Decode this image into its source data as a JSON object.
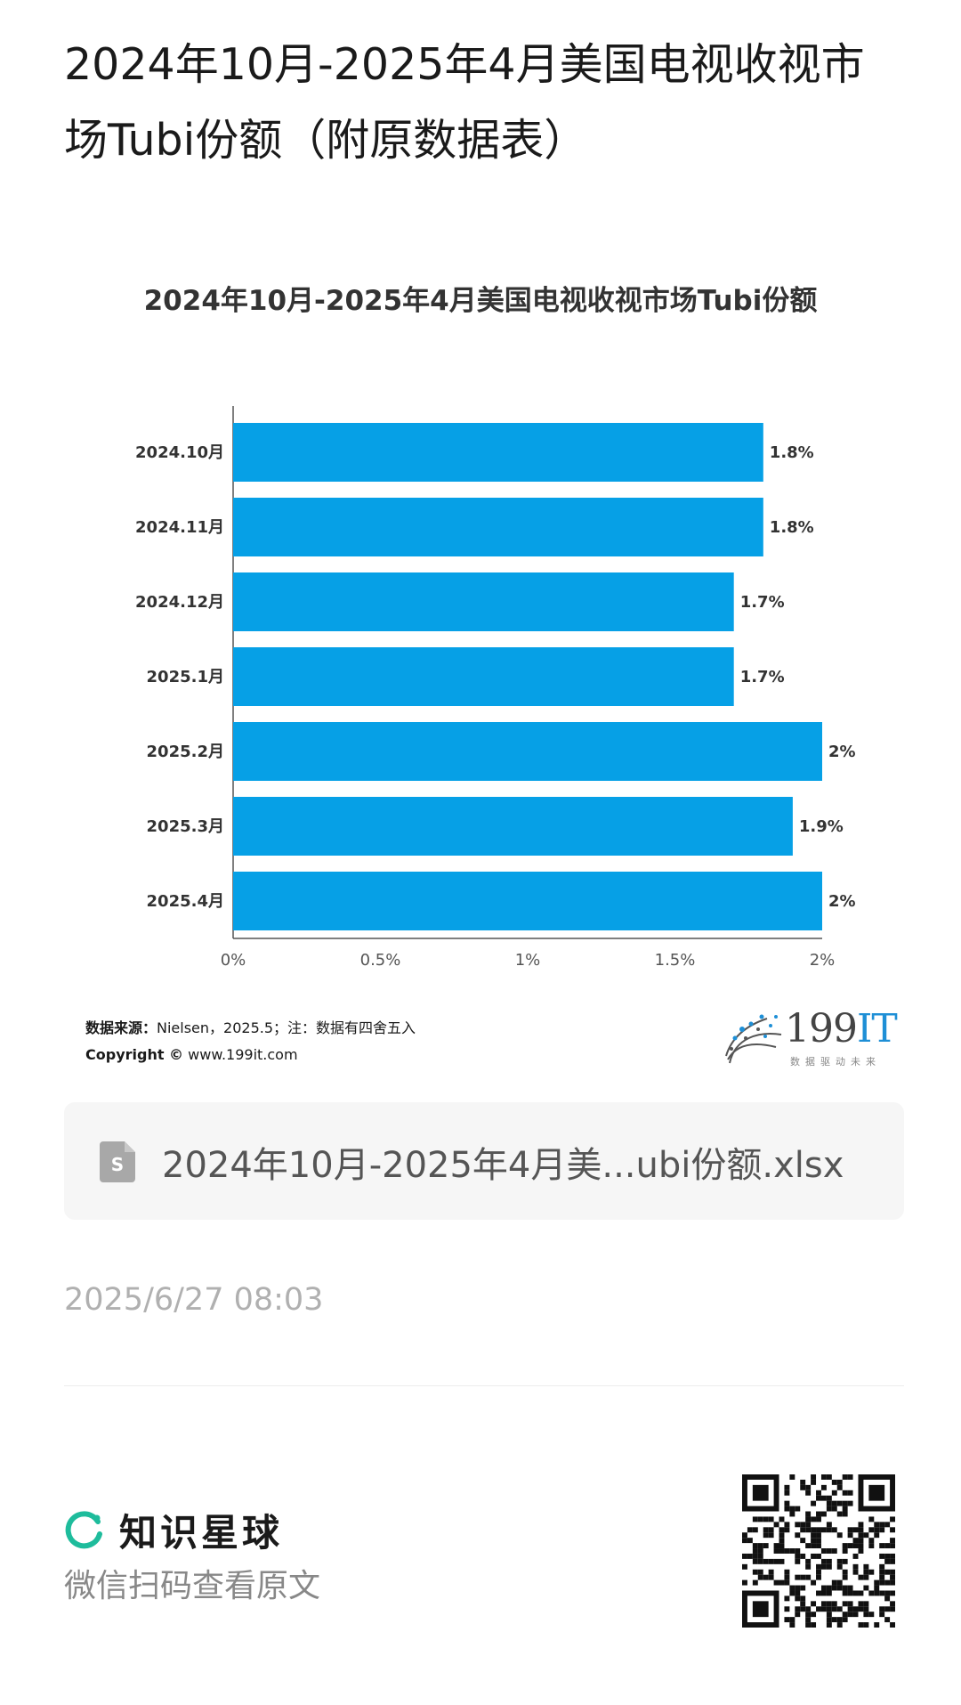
{
  "page_title": "2024年10月-2025年4月美国电视收视市场Tubi份额（附原数据表）",
  "chart_data": {
    "type": "bar",
    "orientation": "horizontal",
    "title": "2024年10月-2025年4月美国电视收视市场Tubi份额",
    "categories": [
      "2024.10月",
      "2024.11月",
      "2024.12月",
      "2025.1月",
      "2025.2月",
      "2025.3月",
      "2025.4月"
    ],
    "values": [
      1.8,
      1.8,
      1.7,
      1.7,
      2,
      1.9,
      2
    ],
    "value_labels": [
      "1.8%",
      "1.8%",
      "1.7%",
      "1.7%",
      "2%",
      "1.9%",
      "2%"
    ],
    "x_ticks": [
      "0%",
      "0.5%",
      "1%",
      "1.5%",
      "2%"
    ],
    "xlim": [
      0,
      2
    ],
    "grid": false,
    "bar_color": "#06a0e6"
  },
  "source": {
    "label": "数据来源：",
    "text": "Nielsen，2025.5；注：数据有四舍五入",
    "copyright_label": "Copyright ©",
    "copyright_site": "www.199it.com"
  },
  "logo": {
    "main": "199",
    "accent": "IT",
    "tagline": "数据驱动未来"
  },
  "file": {
    "name": "2024年10月-2025年4月美...ubi份额.xlsx",
    "icon": "spreadsheet-file-icon"
  },
  "timestamp": "2025/6/27 08:03",
  "footer": {
    "brand_name": "知识星球",
    "brand_icon": "planet-ring-icon",
    "brand_color": "#1ebc9c",
    "scan_text": "微信扫码查看原文"
  }
}
